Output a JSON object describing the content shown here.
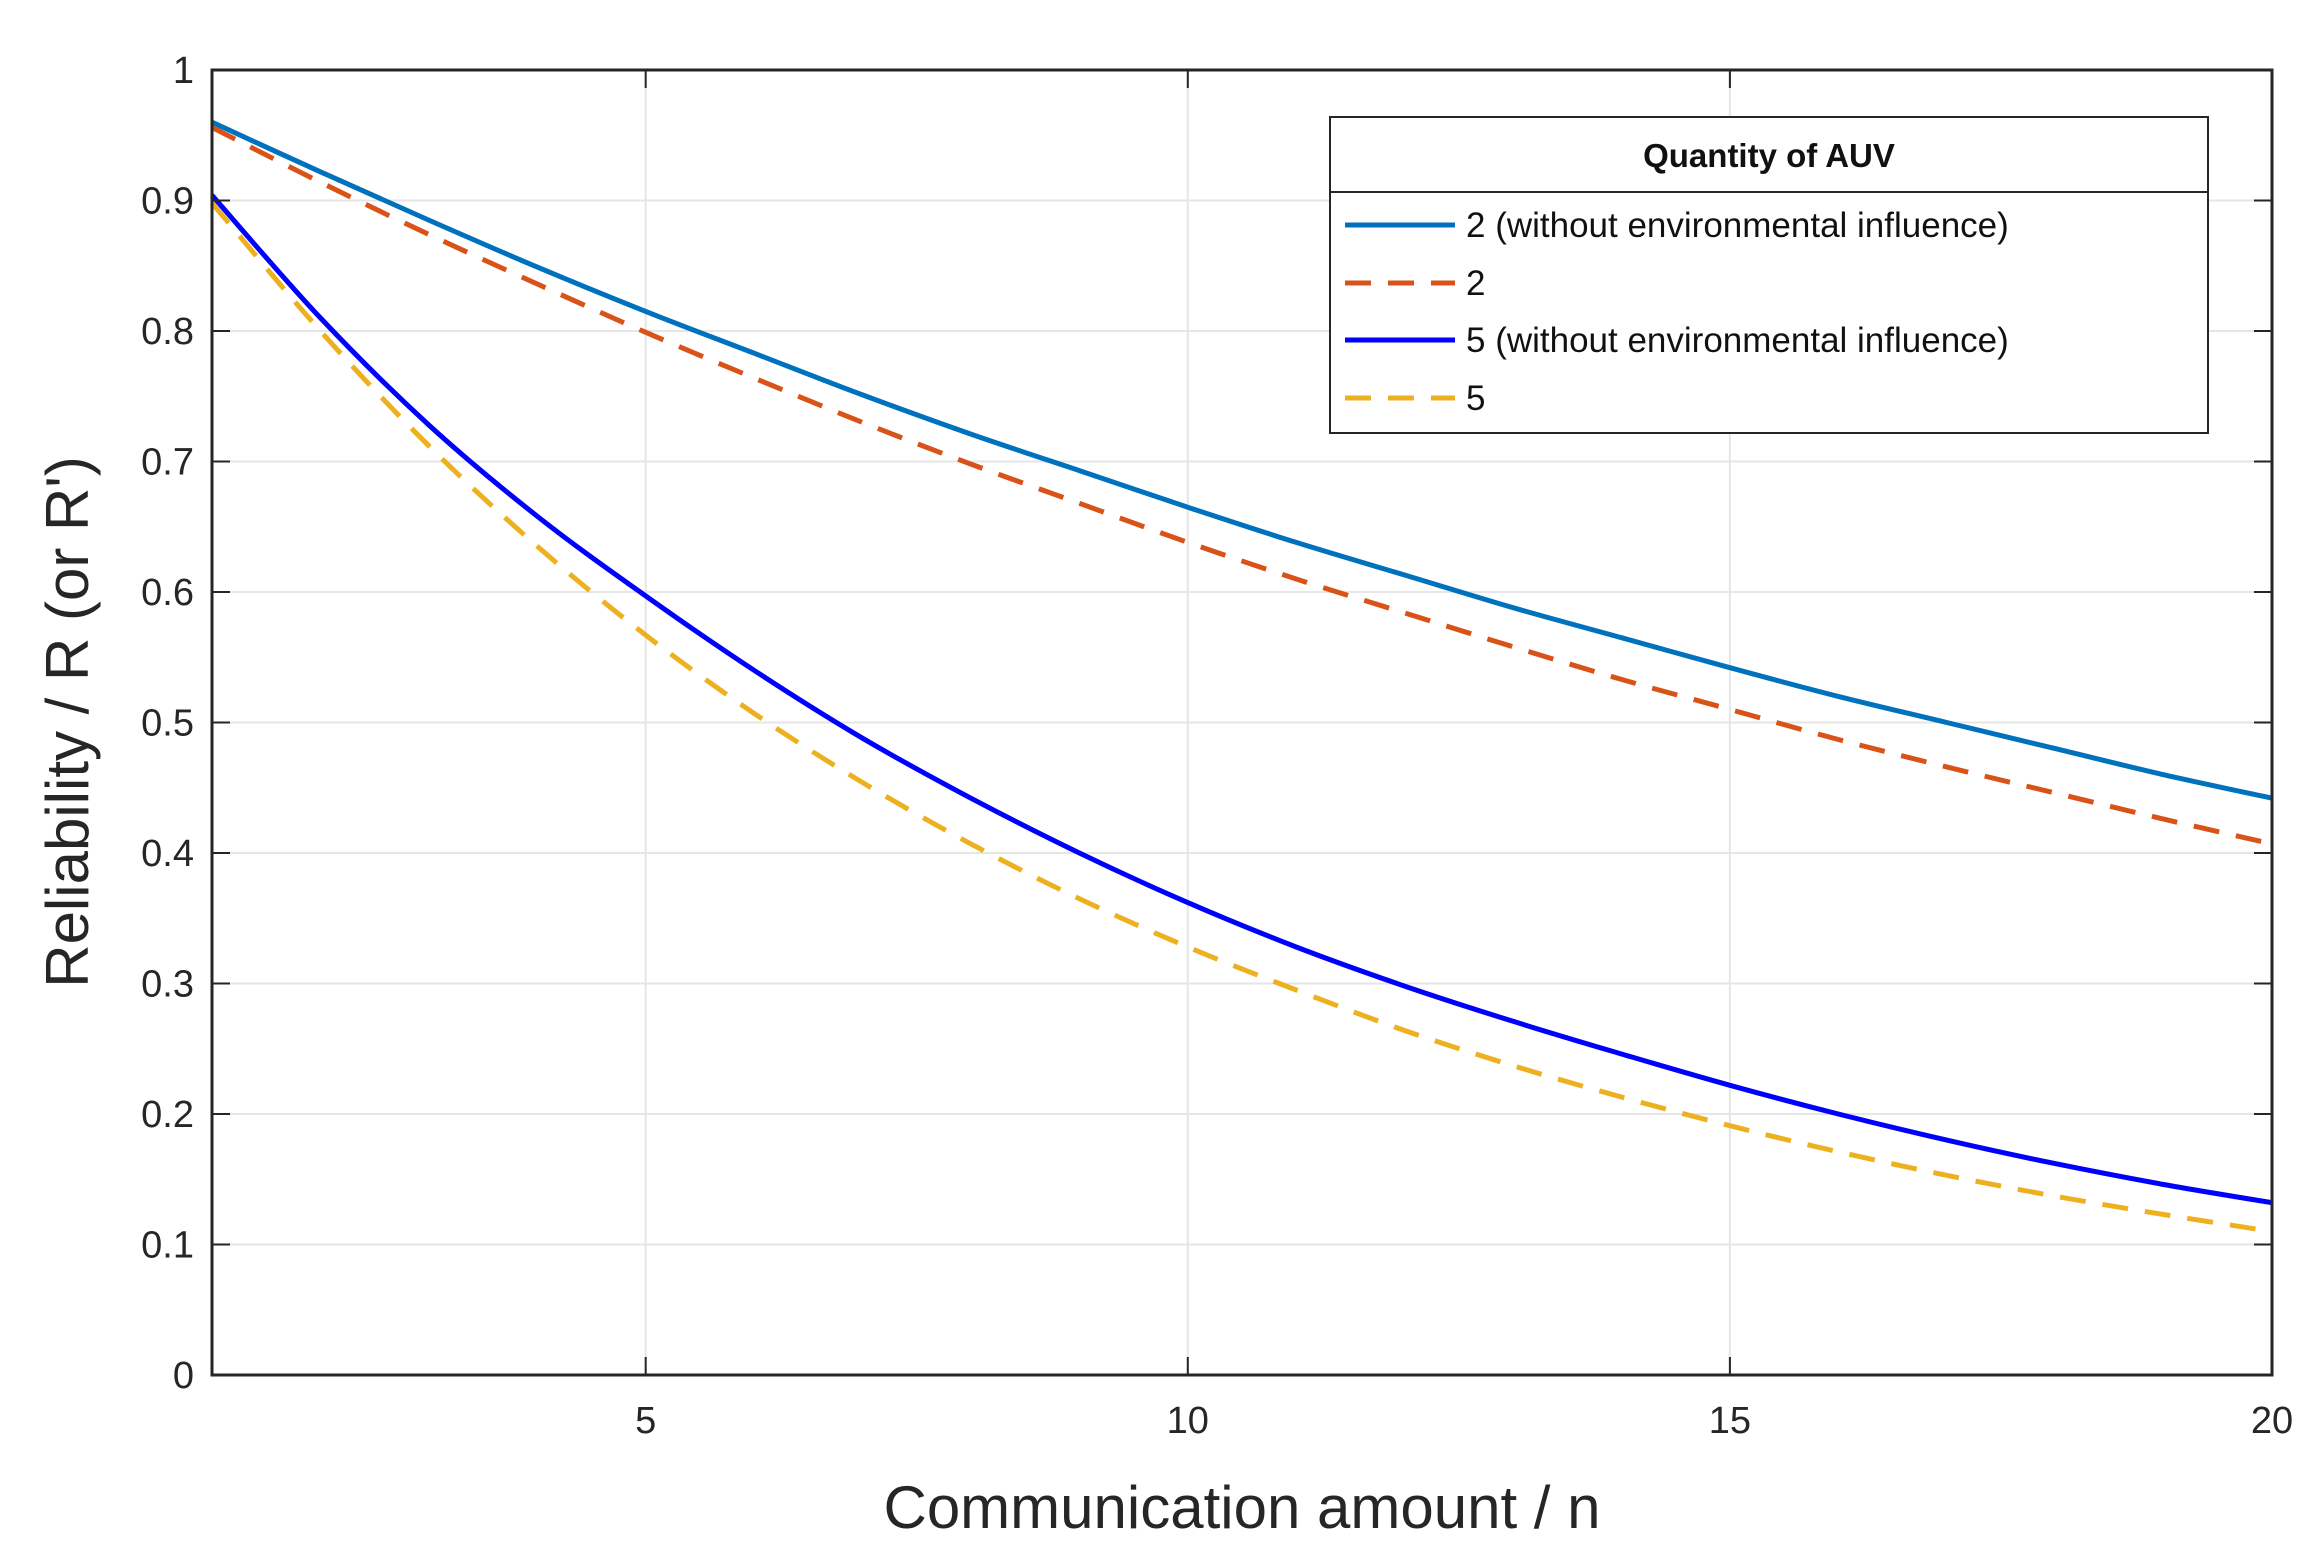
{
  "chart_data": {
    "type": "line",
    "title": "",
    "xlabel": "Communication amount / n",
    "ylabel": "Reliability / R (or R')",
    "xlim": [
      1,
      20
    ],
    "ylim": [
      0,
      1
    ],
    "xticks": [
      5,
      10,
      15,
      20
    ],
    "xtick_labels": [
      "5",
      "10",
      "15",
      "20"
    ],
    "yticks": [
      0,
      0.1,
      0.2,
      0.3,
      0.4,
      0.5,
      0.6,
      0.7,
      0.8,
      0.9,
      1
    ],
    "ytick_labels": [
      "0",
      "0.1",
      "0.2",
      "0.3",
      "0.4",
      "0.5",
      "0.6",
      "0.7",
      "0.8",
      "0.9",
      "1"
    ],
    "grid": true,
    "legend": {
      "title": "Quantity of AUV",
      "position": "top-right"
    },
    "x": [
      1,
      2,
      3,
      4,
      5,
      6,
      7,
      8,
      9,
      10,
      11,
      12,
      13,
      14,
      15,
      16,
      17,
      18,
      19,
      20
    ],
    "series": [
      {
        "name": "2 (without environmental influence)",
        "color": "#0072BD",
        "style": "solid",
        "values": [
          0.96,
          0.922,
          0.885,
          0.849,
          0.815,
          0.783,
          0.751,
          0.721,
          0.693,
          0.665,
          0.638,
          0.613,
          0.588,
          0.565,
          0.542,
          0.52,
          0.5,
          0.48,
          0.46,
          0.442
        ]
      },
      {
        "name": "2",
        "color": "#D95319",
        "style": "dashed",
        "values": [
          0.956,
          0.914,
          0.874,
          0.836,
          0.799,
          0.764,
          0.73,
          0.698,
          0.668,
          0.638,
          0.61,
          0.584,
          0.558,
          0.533,
          0.51,
          0.487,
          0.466,
          0.446,
          0.426,
          0.407
        ]
      },
      {
        "name": "5 (without environmental influence)",
        "color": "#0000FF",
        "style": "solid",
        "values": [
          0.904,
          0.81,
          0.728,
          0.658,
          0.597,
          0.54,
          0.488,
          0.442,
          0.4,
          0.362,
          0.328,
          0.298,
          0.271,
          0.246,
          0.222,
          0.2,
          0.18,
          0.162,
          0.146,
          0.132
        ]
      },
      {
        "name": "5",
        "color": "#EDB120",
        "style": "dashed",
        "values": [
          0.898,
          0.8,
          0.712,
          0.635,
          0.567,
          0.507,
          0.454,
          0.407,
          0.365,
          0.328,
          0.295,
          0.264,
          0.237,
          0.213,
          0.191,
          0.171,
          0.153,
          0.137,
          0.123,
          0.11
        ]
      }
    ]
  }
}
